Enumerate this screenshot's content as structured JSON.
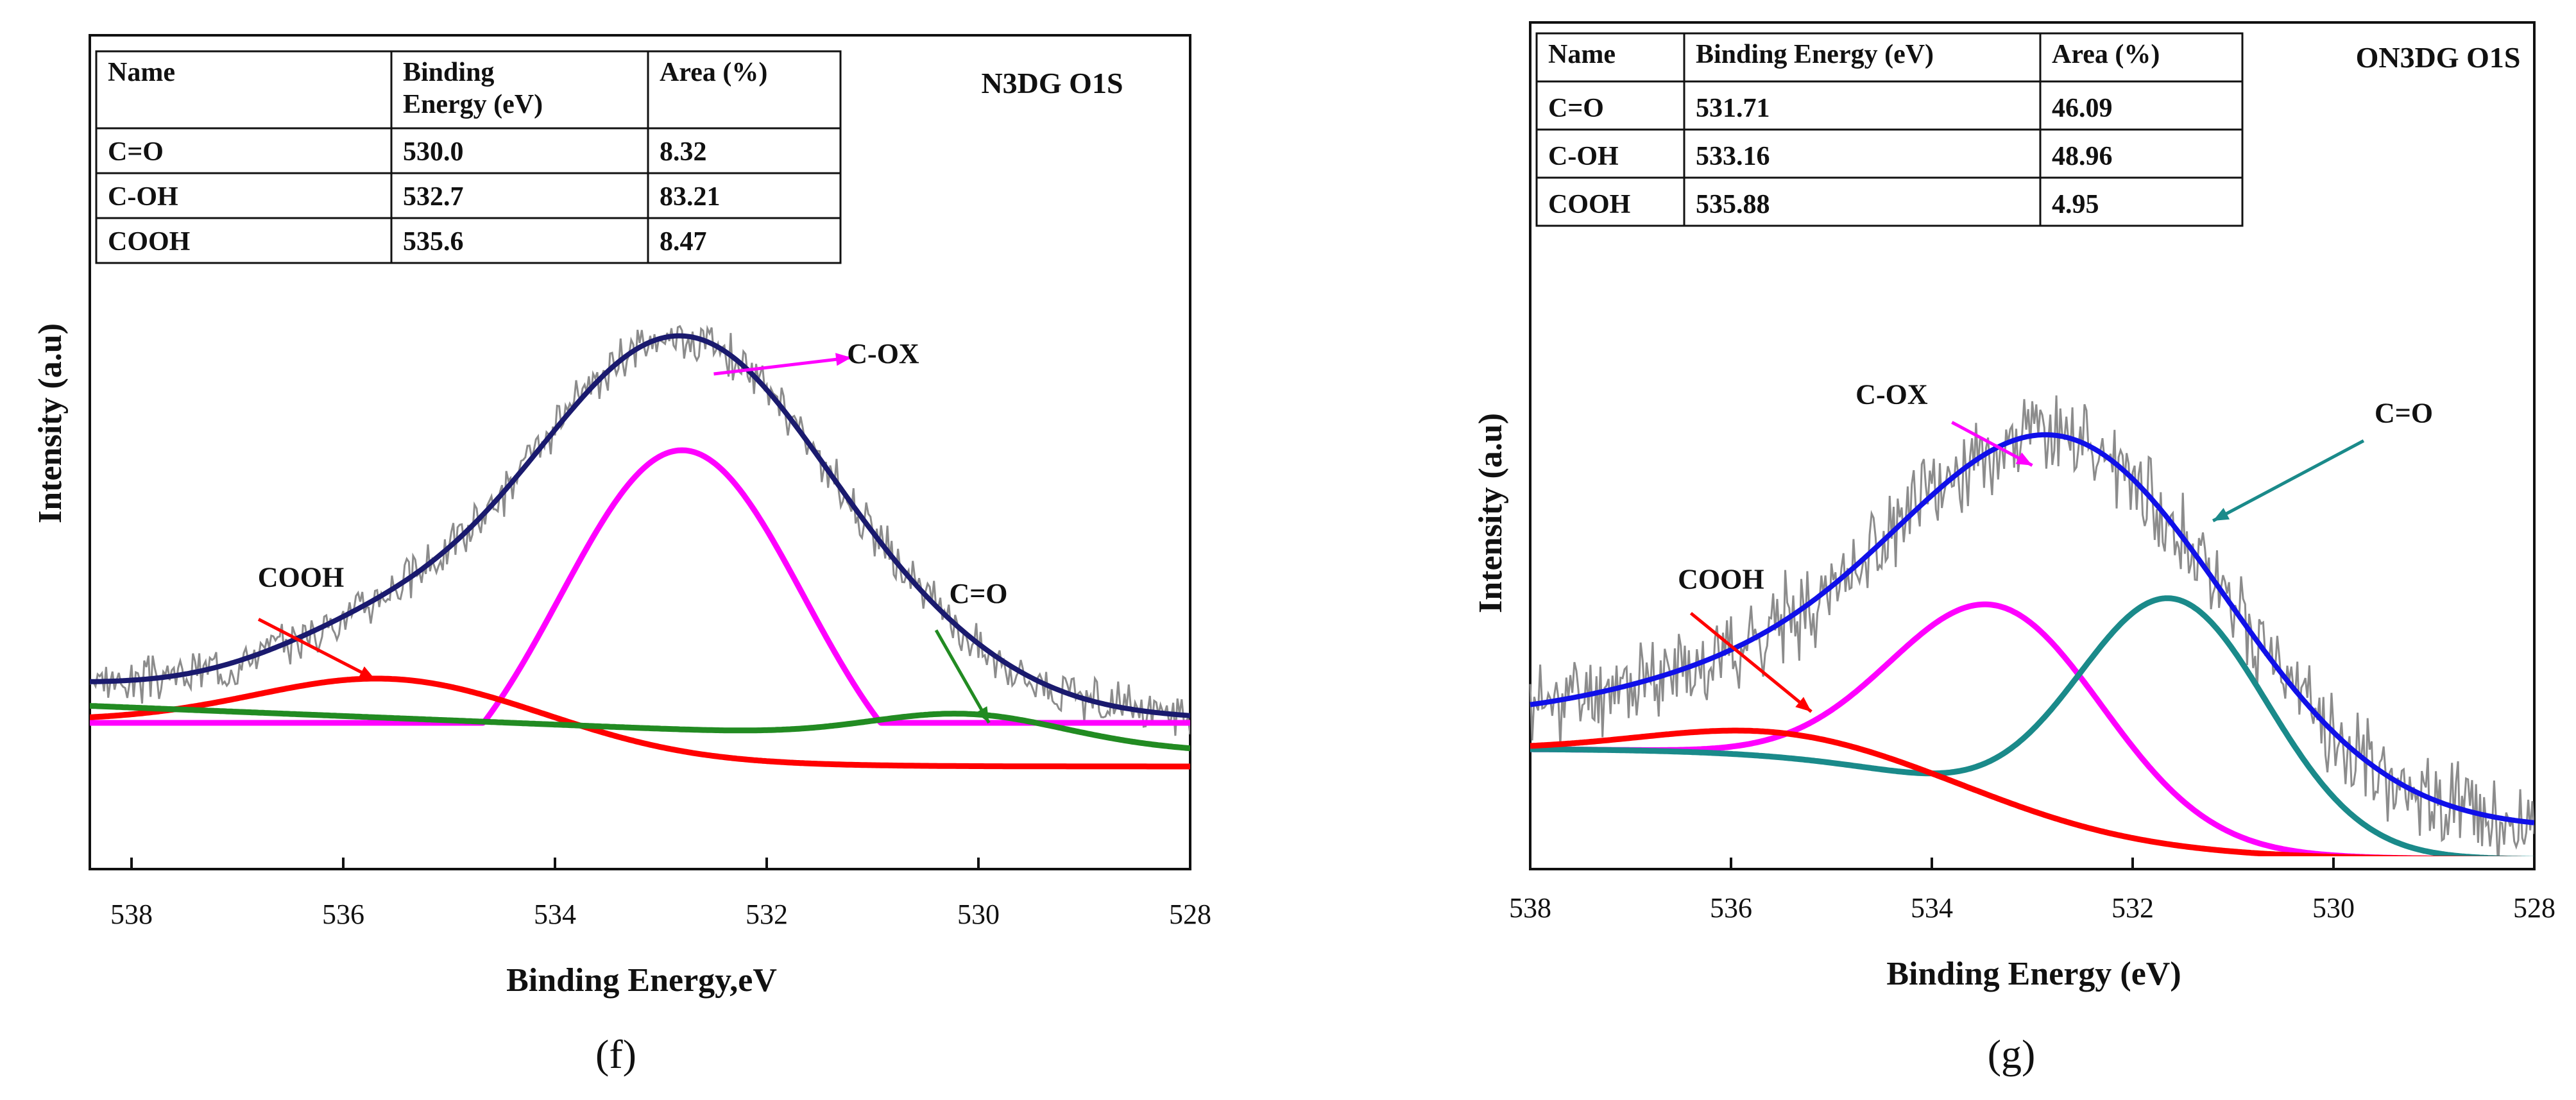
{
  "chart_data": [
    {
      "id": "f",
      "type": "line",
      "subfigure_label": "(f)",
      "title": "N3DG O1S",
      "xlabel": "Binding Energy,eV",
      "ylabel": "Intensity (a.u)",
      "xlim": [
        538,
        528
      ],
      "xticks": [
        538,
        536,
        534,
        532,
        530,
        528
      ],
      "ylim": [
        0,
        100
      ],
      "table": {
        "headers": [
          "Name",
          "Binding Energy (eV)",
          "Area (%)"
        ],
        "header_lines": [
          [
            "Name"
          ],
          [
            "Binding",
            "Energy (eV)"
          ],
          [
            "Area (%)"
          ]
        ],
        "rows": [
          [
            "C=O",
            "530.0",
            "8.32"
          ],
          [
            "C-OH",
            "532.7",
            "83.21"
          ],
          [
            "COOH",
            "535.6",
            "8.47"
          ]
        ]
      },
      "series": [
        {
          "name": "Fitted envelope",
          "color": "#1a1a6e",
          "role": "envelope",
          "baseline": 22,
          "peaks": [
            [
              532.8,
              67,
              1.45
            ],
            [
              535.8,
              8,
              1.0
            ],
            [
              530.2,
              2,
              0.8
            ]
          ],
          "slope": 0.6
        },
        {
          "name": "C-OX",
          "color": "#ff00ff",
          "role": "component",
          "baseline": 0,
          "peaks": [
            [
              532.8,
              68,
              1.15
            ]
          ],
          "floor": 18
        },
        {
          "name": "COOH",
          "color": "#ff0000",
          "role": "component",
          "sigmoid": [
            18.5,
            10,
            533.5,
            0.7
          ],
          "peaks": [
            [
              535.6,
              8,
              1.2
            ]
          ]
        },
        {
          "name": "C=O",
          "color": "#228b22",
          "role": "component",
          "line": [
            537.6,
            20.5,
            528,
            13
          ],
          "peaks": [
            [
              530.1,
              5,
              0.9
            ]
          ]
        }
      ],
      "annotations": [
        {
          "text": "C-OX",
          "color": "#ff00ff",
          "x": 530.9,
          "y": 84,
          "arrow_from": [
            532.5,
            82
          ],
          "arrow_to": [
            531.2,
            85
          ]
        },
        {
          "text": "COOH",
          "color": "#ff0000",
          "x": 536.4,
          "y": 43,
          "arrow_from": [
            536.8,
            37
          ],
          "arrow_to": [
            535.7,
            26
          ]
        },
        {
          "text": "C=O",
          "color": "#228b22",
          "x": 530.0,
          "y": 40,
          "arrow_from": [
            530.4,
            35
          ],
          "arrow_to": [
            529.9,
            18
          ]
        }
      ],
      "noise_seed": 3,
      "noise_amp": 3.2,
      "raw_color": "#8c8c8c"
    },
    {
      "id": "g",
      "type": "line",
      "subfigure_label": "(g)",
      "title": "ON3DG O1S",
      "xlabel": "Binding Energy (eV)",
      "ylabel": "Intensity (a.u)",
      "xlim": [
        538,
        528
      ],
      "xticks": [
        538,
        536,
        534,
        532,
        530,
        528
      ],
      "ylim": [
        0,
        100
      ],
      "table": {
        "headers": [
          "Name",
          "Binding Energy (eV)",
          "Area (%)"
        ],
        "header_lines": [
          [
            "Name"
          ],
          [
            "Binding Energy (eV)"
          ],
          [
            "Area (%)"
          ]
        ],
        "rows": [
          [
            "C=O",
            "531.71",
            "46.09"
          ],
          [
            "C-OH",
            "533.16",
            "48.96"
          ],
          [
            "COOH",
            "535.88",
            "4.95"
          ]
        ]
      },
      "series": [
        {
          "name": "Fitted envelope",
          "color": "#1010e8",
          "role": "envelope",
          "baseline": 5,
          "peaks": [
            [
              532.6,
              57,
              1.6
            ],
            [
              535.8,
              6,
              1.5
            ]
          ],
          "sigmoid_env": [
            18,
            0,
            533.3,
            0.9
          ]
        },
        {
          "name": "C-OX",
          "color": "#ff00ff",
          "role": "component",
          "sigmoid": [
            18,
            0,
            533.3,
            0.9
          ],
          "peaks": [
            [
              533.3,
              32,
              1.05
            ]
          ]
        },
        {
          "name": "C=O",
          "color": "#1a8a8a",
          "role": "component",
          "sigmoid": [
            18,
            0,
            533.3,
            0.9
          ],
          "peaks": [
            [
              531.6,
              40,
              0.95
            ]
          ]
        },
        {
          "name": "COOH",
          "color": "#ff0000",
          "role": "component",
          "sigmoid": [
            18,
            0,
            533.3,
            0.9
          ],
          "peaks": [
            [
              535.6,
              4,
              1.2
            ]
          ]
        }
      ],
      "annotations": [
        {
          "text": "C-OX",
          "color": "#ff00ff",
          "x": 534.4,
          "y": 74,
          "arrow_from": [
            533.8,
            71
          ],
          "arrow_to": [
            533.0,
            64
          ]
        },
        {
          "text": "C=O",
          "color": "#1a8a8a",
          "x": 529.3,
          "y": 71,
          "arrow_from": [
            529.7,
            68
          ],
          "arrow_to": [
            531.2,
            55
          ]
        },
        {
          "text": "COOH",
          "color": "#ff0000",
          "x": 536.1,
          "y": 44,
          "arrow_from": [
            536.4,
            40
          ],
          "arrow_to": [
            535.2,
            24
          ]
        }
      ],
      "noise_seed": 11,
      "noise_amp": 5.5,
      "raw_color": "#8c8c8c"
    }
  ]
}
